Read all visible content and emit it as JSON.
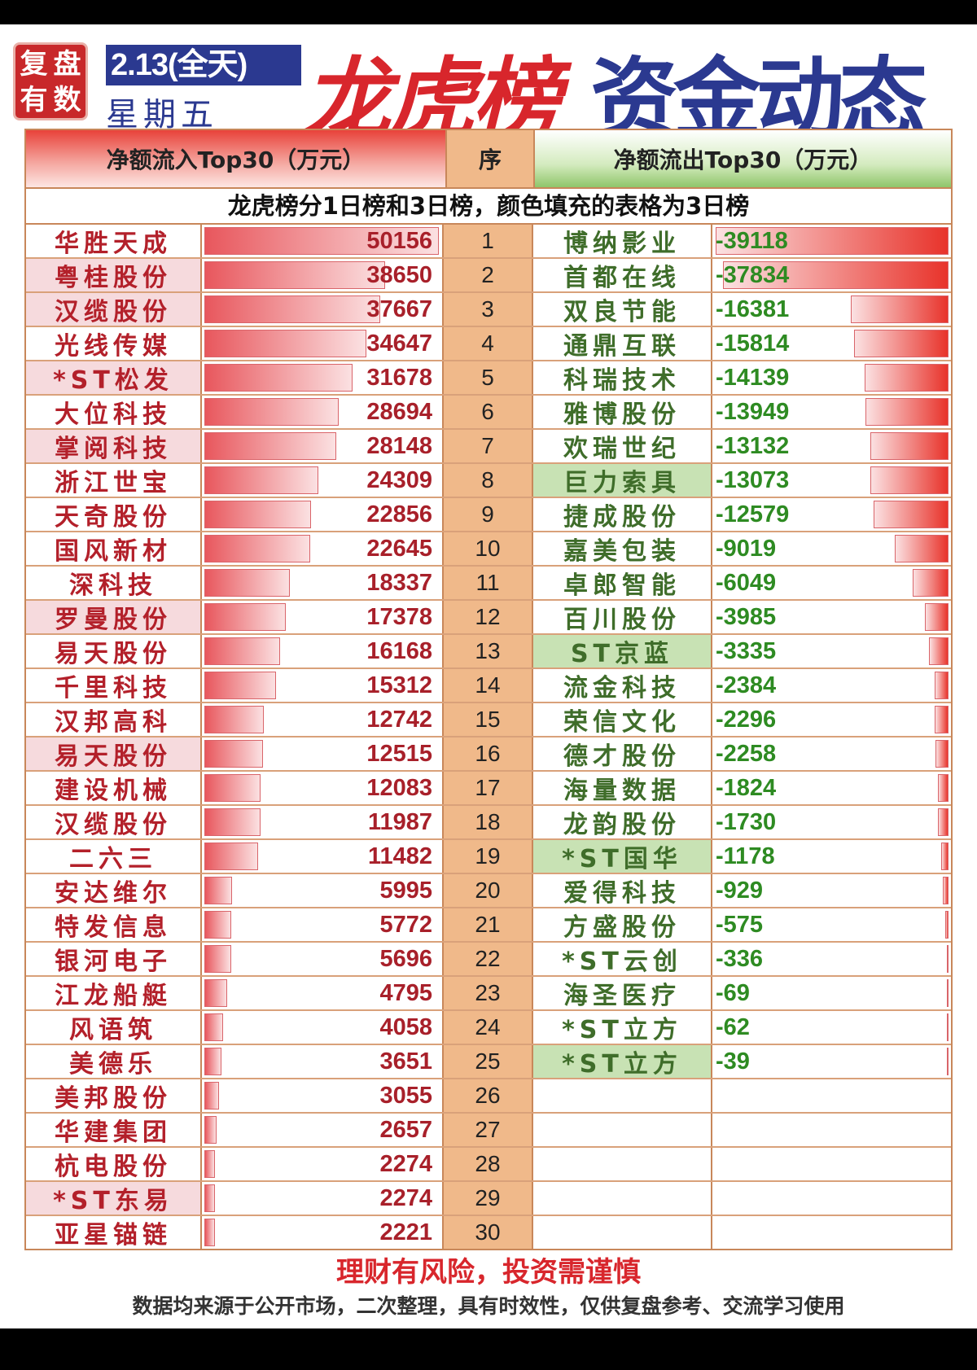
{
  "header": {
    "stamp": [
      "复",
      "盘",
      "有",
      "数"
    ],
    "date": "2.13(全天)",
    "weekday": "星期五",
    "title_red": "龙虎榜",
    "title_blue": "资金动态"
  },
  "table": {
    "col_in": "净额流入Top30（万元）",
    "col_seq": "序",
    "col_out": "净额流出Top30（万元）",
    "note": "龙虎榜分1日榜和3日榜，颜色填充的表格为3日榜"
  },
  "colors": {
    "inflow_text": "#b3202a",
    "outflow_text": "#2e8b22",
    "bar_red": "#e8332b",
    "seq_bg": "#f0b98a",
    "three_day_in": "#f6dadd",
    "three_day_out": "#c8e2b4"
  },
  "chart_data": {
    "type": "table",
    "inflow": [
      {
        "rank": 1,
        "name": "华胜天成",
        "value": 50156,
        "three_day": false
      },
      {
        "rank": 2,
        "name": "粤桂股份",
        "value": 38650,
        "three_day": true
      },
      {
        "rank": 3,
        "name": "汉缆股份",
        "value": 37667,
        "three_day": true
      },
      {
        "rank": 4,
        "name": "光线传媒",
        "value": 34647,
        "three_day": false
      },
      {
        "rank": 5,
        "name": "*ST松发",
        "value": 31678,
        "three_day": true
      },
      {
        "rank": 6,
        "name": "大位科技",
        "value": 28694,
        "three_day": false
      },
      {
        "rank": 7,
        "name": "掌阅科技",
        "value": 28148,
        "three_day": true
      },
      {
        "rank": 8,
        "name": "浙江世宝",
        "value": 24309,
        "three_day": false
      },
      {
        "rank": 9,
        "name": "天奇股份",
        "value": 22856,
        "three_day": false
      },
      {
        "rank": 10,
        "name": "国风新材",
        "value": 22645,
        "three_day": false
      },
      {
        "rank": 11,
        "name": "深科技",
        "value": 18337,
        "three_day": false
      },
      {
        "rank": 12,
        "name": "罗曼股份",
        "value": 17378,
        "three_day": true
      },
      {
        "rank": 13,
        "name": "易天股份",
        "value": 16168,
        "three_day": false
      },
      {
        "rank": 14,
        "name": "千里科技",
        "value": 15312,
        "three_day": false
      },
      {
        "rank": 15,
        "name": "汉邦高科",
        "value": 12742,
        "three_day": false
      },
      {
        "rank": 16,
        "name": "易天股份",
        "value": 12515,
        "three_day": true
      },
      {
        "rank": 17,
        "name": "建设机械",
        "value": 12083,
        "three_day": false
      },
      {
        "rank": 18,
        "name": "汉缆股份",
        "value": 11987,
        "three_day": false
      },
      {
        "rank": 19,
        "name": "二六三",
        "value": 11482,
        "three_day": false
      },
      {
        "rank": 20,
        "name": "安达维尔",
        "value": 5995,
        "three_day": false
      },
      {
        "rank": 21,
        "name": "特发信息",
        "value": 5772,
        "three_day": false
      },
      {
        "rank": 22,
        "name": "银河电子",
        "value": 5696,
        "three_day": false
      },
      {
        "rank": 23,
        "name": "江龙船艇",
        "value": 4795,
        "three_day": false
      },
      {
        "rank": 24,
        "name": "风语筑",
        "value": 4058,
        "three_day": false
      },
      {
        "rank": 25,
        "name": "美德乐",
        "value": 3651,
        "three_day": false
      },
      {
        "rank": 26,
        "name": "美邦股份",
        "value": 3055,
        "three_day": false
      },
      {
        "rank": 27,
        "name": "华建集团",
        "value": 2657,
        "three_day": false
      },
      {
        "rank": 28,
        "name": "杭电股份",
        "value": 2274,
        "three_day": false
      },
      {
        "rank": 29,
        "name": "*ST东易",
        "value": 2274,
        "three_day": true
      },
      {
        "rank": 30,
        "name": "亚星锚链",
        "value": 2221,
        "three_day": false
      }
    ],
    "outflow": [
      {
        "rank": 1,
        "name": "博纳影业",
        "value": -39118,
        "three_day": false
      },
      {
        "rank": 2,
        "name": "首都在线",
        "value": -37834,
        "three_day": false
      },
      {
        "rank": 3,
        "name": "双良节能",
        "value": -16381,
        "three_day": false
      },
      {
        "rank": 4,
        "name": "通鼎互联",
        "value": -15814,
        "three_day": false
      },
      {
        "rank": 5,
        "name": "科瑞技术",
        "value": -14139,
        "three_day": false
      },
      {
        "rank": 6,
        "name": "雅博股份",
        "value": -13949,
        "three_day": false
      },
      {
        "rank": 7,
        "name": "欢瑞世纪",
        "value": -13132,
        "three_day": false
      },
      {
        "rank": 8,
        "name": "巨力索具",
        "value": -13073,
        "three_day": true
      },
      {
        "rank": 9,
        "name": "捷成股份",
        "value": -12579,
        "three_day": false
      },
      {
        "rank": 10,
        "name": "嘉美包装",
        "value": -9019,
        "three_day": false
      },
      {
        "rank": 11,
        "name": "卓郎智能",
        "value": -6049,
        "three_day": false
      },
      {
        "rank": 12,
        "name": "百川股份",
        "value": -3985,
        "three_day": false
      },
      {
        "rank": 13,
        "name": "ST京蓝",
        "value": -3335,
        "three_day": true
      },
      {
        "rank": 14,
        "name": "流金科技",
        "value": -2384,
        "three_day": false
      },
      {
        "rank": 15,
        "name": "荣信文化",
        "value": -2296,
        "three_day": false
      },
      {
        "rank": 16,
        "name": "德才股份",
        "value": -2258,
        "three_day": false
      },
      {
        "rank": 17,
        "name": "海量数据",
        "value": -1824,
        "three_day": false
      },
      {
        "rank": 18,
        "name": "龙韵股份",
        "value": -1730,
        "three_day": false
      },
      {
        "rank": 19,
        "name": "*ST国华",
        "value": -1178,
        "three_day": true
      },
      {
        "rank": 20,
        "name": "爱得科技",
        "value": -929,
        "three_day": false
      },
      {
        "rank": 21,
        "name": "方盛股份",
        "value": -575,
        "three_day": false
      },
      {
        "rank": 22,
        "name": "*ST云创",
        "value": -336,
        "three_day": false
      },
      {
        "rank": 23,
        "name": "海圣医疗",
        "value": -69,
        "three_day": false
      },
      {
        "rank": 24,
        "name": "*ST立方",
        "value": -62,
        "three_day": false
      },
      {
        "rank": 25,
        "name": "*ST立方",
        "value": -39,
        "three_day": true
      }
    ]
  },
  "footer": {
    "warning": "理财有风险，投资需谨慎",
    "source": "数据均来源于公开市场，二次整理，具有时效性，仅供复盘参考、交流学习使用"
  }
}
